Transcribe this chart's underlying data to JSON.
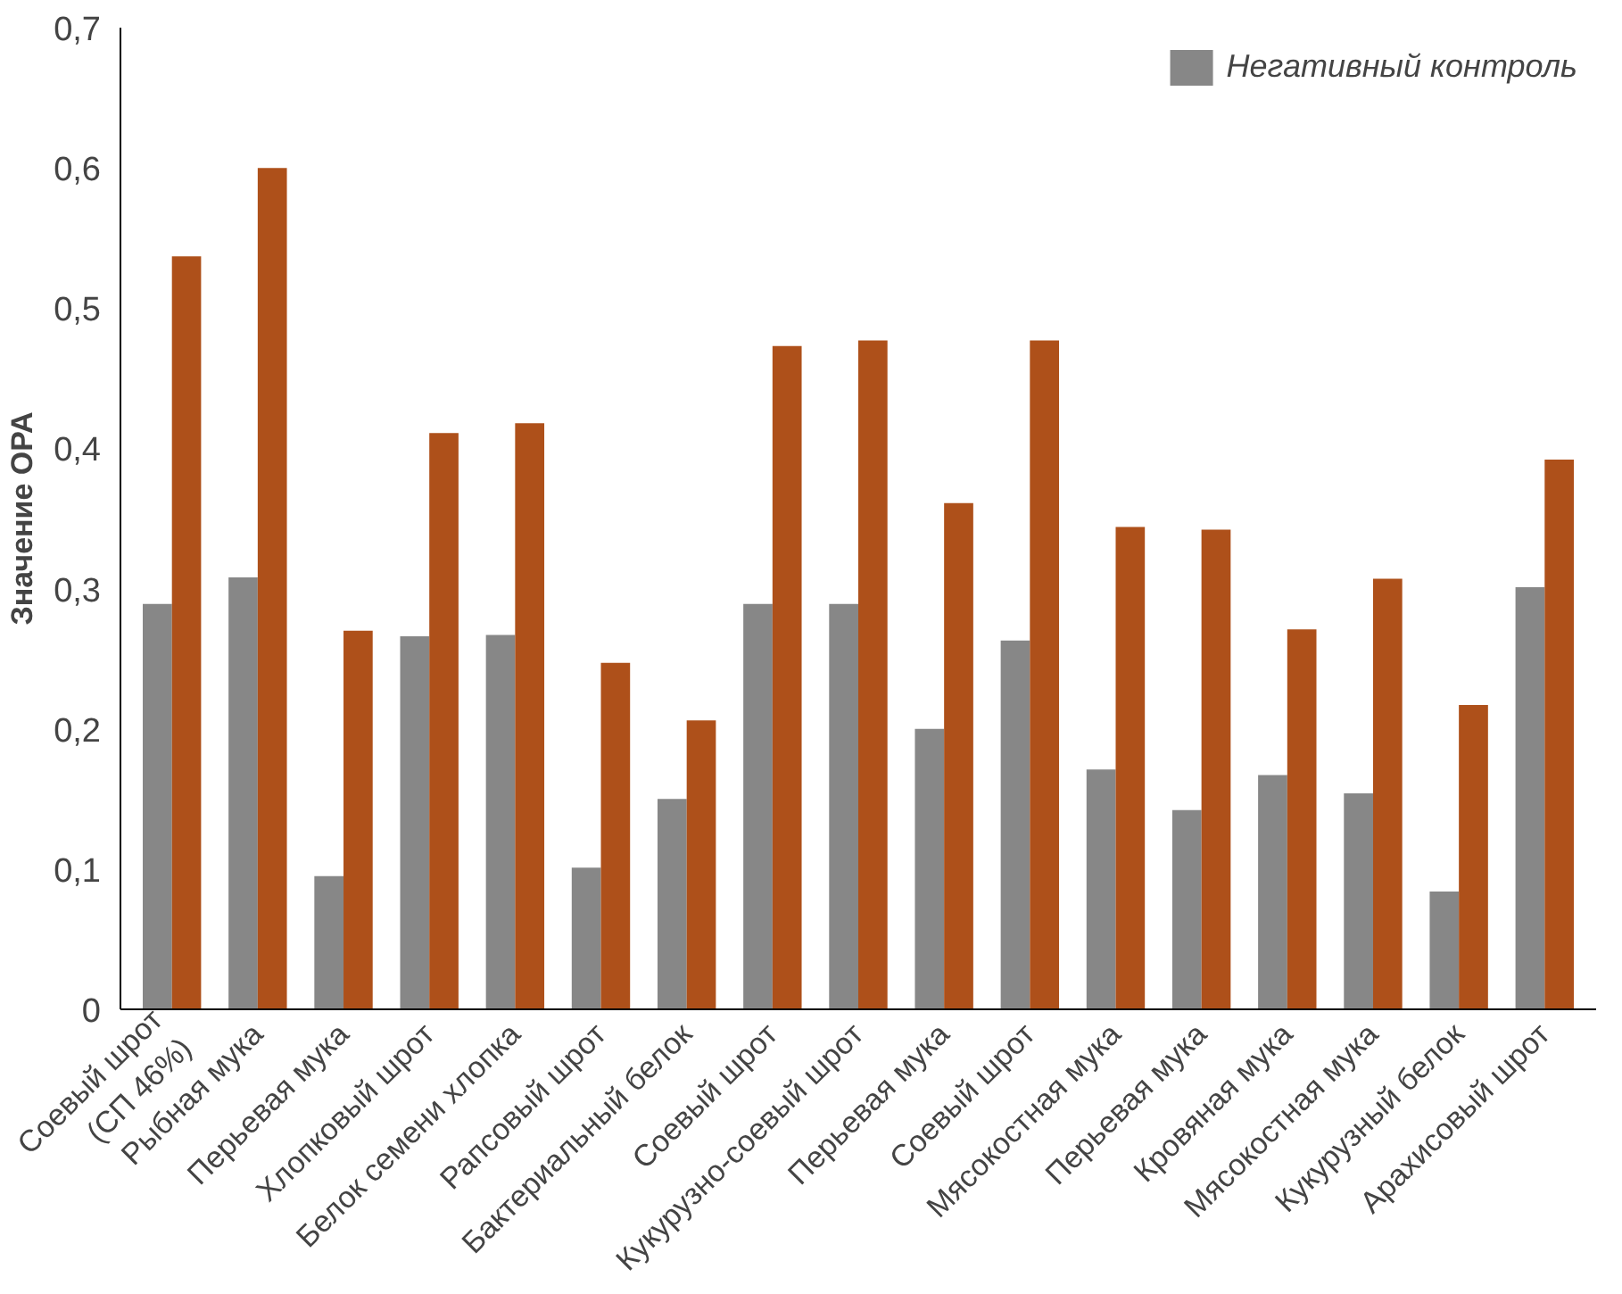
{
  "chart_data": {
    "type": "bar",
    "ylabel": "Значение ОРА",
    "categories": [
      "Соевый шрот\n(СП 46%)",
      "Рыбная мука",
      "Перьевая мука",
      "Хлопковый шрот",
      "Белок семени хлопка",
      "Рапсовый шрот",
      "Бактериальный белок",
      "Соевый шрот",
      "Кукурузно-соевый шрот",
      "Перьевая мука",
      "Соевый шрот",
      "Мясокостная мука",
      "Перьевая мука",
      "Кровяная мука",
      "Мясокостная мука",
      "Кукурузный белок",
      "Арахисовый шрот"
    ],
    "series": [
      {
        "name": "Негативный контроль",
        "color": "#878787",
        "values": [
          0.289,
          0.308,
          0.095,
          0.266,
          0.267,
          0.101,
          0.15,
          0.289,
          0.289,
          0.2,
          0.263,
          0.171,
          0.142,
          0.167,
          0.154,
          0.084,
          0.301
        ]
      },
      {
        "color": "#ae501a",
        "values": [
          0.537,
          0.6,
          0.27,
          0.411,
          0.418,
          0.247,
          0.206,
          0.473,
          0.477,
          0.361,
          0.477,
          0.344,
          0.342,
          0.271,
          0.307,
          0.217,
          0.392
        ]
      }
    ],
    "ylim": [
      0,
      0.7
    ],
    "yticks": [
      {
        "value": 0,
        "label": "0"
      },
      {
        "value": 0.1,
        "label": "0,1"
      },
      {
        "value": 0.2,
        "label": "0,2"
      },
      {
        "value": 0.3,
        "label": "0,3"
      },
      {
        "value": 0.4,
        "label": "0,4"
      },
      {
        "value": 0.5,
        "label": "0,5"
      },
      {
        "value": 0.6,
        "label": "0,6"
      },
      {
        "value": 0.7,
        "label": "0,7"
      }
    ],
    "grid": false,
    "legend": "top right"
  }
}
